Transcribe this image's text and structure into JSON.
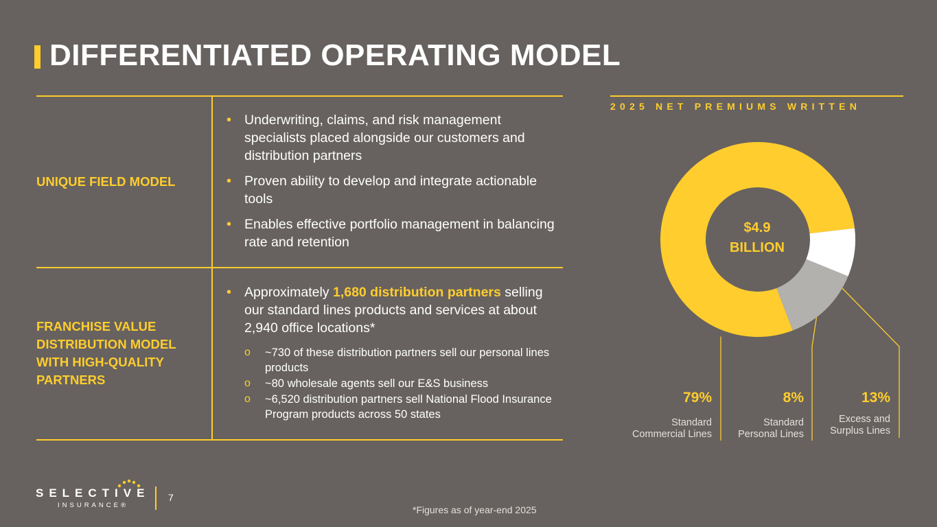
{
  "page": {
    "title": "DIFFERENTIATED OPERATING MODEL",
    "page_number": "7",
    "footnote": "*Figures as of year-end 2025"
  },
  "logo": {
    "wordmark": "SELECTIVE",
    "subtitle": "INSURANCE®"
  },
  "table": {
    "rows": [
      {
        "label": "UNIQUE FIELD MODEL",
        "bullets": [
          "Underwriting, claims, and risk management specialists placed alongside our customers and distribution partners",
          "Proven ability to develop and integrate actionable tools",
          "Enables effective portfolio management in balancing rate and retention"
        ]
      },
      {
        "label": "FRANCHISE VALUE DISTRIBUTION MODEL WITH HIGH-QUALITY PARTNERS",
        "bullet_prefix": "Approximately ",
        "bullet_highlight": "1,680 distribution partners",
        "bullet_suffix": " selling our standard lines products and services at about 2,940 office locations*",
        "sub_bullets": [
          "~730 of these distribution partners sell our personal lines products",
          "~80 wholesale agents sell our E&S business",
          "~6,520 distribution partners sell National Flood Insurance Program products across 50 states"
        ]
      }
    ]
  },
  "chart_data": {
    "type": "pie",
    "title": "2025 NET PREMIUMS WRITTEN",
    "center_label_line1": "$4.9",
    "center_label_line2": "BILLION",
    "slices": [
      {
        "name": "Standard Commercial Lines",
        "line1": "Standard",
        "line2": "Commercial Lines",
        "value": 79,
        "label": "79%",
        "color": "#ffcd2e"
      },
      {
        "name": "Standard Personal Lines",
        "line1": "Standard",
        "line2": "Personal Lines",
        "value": 8,
        "label": "8%",
        "color": "#ffffff"
      },
      {
        "name": "Excess and Surplus Lines",
        "line1": "Excess and",
        "line2": "Surplus Lines",
        "value": 13,
        "label": "13%",
        "color": "#b3b1ae"
      }
    ]
  },
  "colors": {
    "background": "#67625f",
    "accent": "#ffcd2e"
  }
}
